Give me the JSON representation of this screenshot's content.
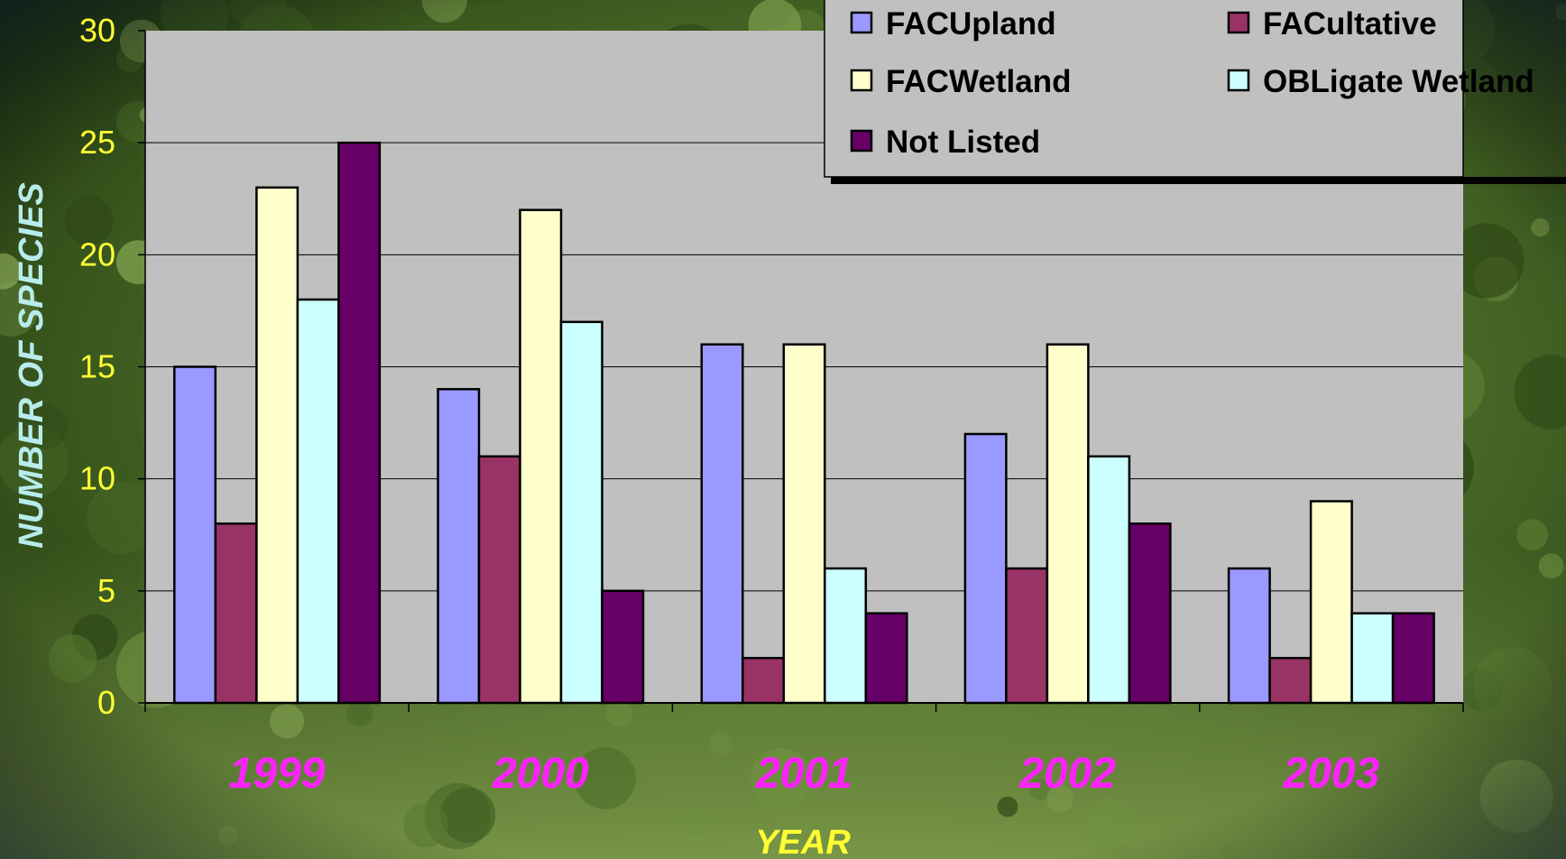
{
  "chart_data": {
    "type": "bar",
    "categories": [
      "1999",
      "2000",
      "2001",
      "2002",
      "2003"
    ],
    "series": [
      {
        "name": "FACUpland",
        "color": "#9999ff",
        "values": [
          15,
          14,
          16,
          12,
          6
        ]
      },
      {
        "name": "FACultative",
        "color": "#993366",
        "values": [
          8,
          11,
          2,
          6,
          2
        ]
      },
      {
        "name": "FACWetland",
        "color": "#ffffcc",
        "values": [
          23,
          22,
          16,
          16,
          9
        ]
      },
      {
        "name": "OBLigate Wetland",
        "color": "#ccffff",
        "values": [
          18,
          17,
          6,
          11,
          4
        ]
      },
      {
        "name": "Not Listed",
        "color": "#660066",
        "values": [
          25,
          5,
          4,
          8,
          4
        ]
      }
    ],
    "xlabel": "YEAR",
    "ylabel": "NUMBER OF SPECIES",
    "ylim": [
      0,
      30
    ],
    "yticks": [
      "0",
      "5",
      "10",
      "15",
      "20",
      "25",
      "30"
    ],
    "grid": true,
    "legend_position": "top-right",
    "plot_background": "#c0c0c0",
    "background": "photo of green foliage"
  }
}
